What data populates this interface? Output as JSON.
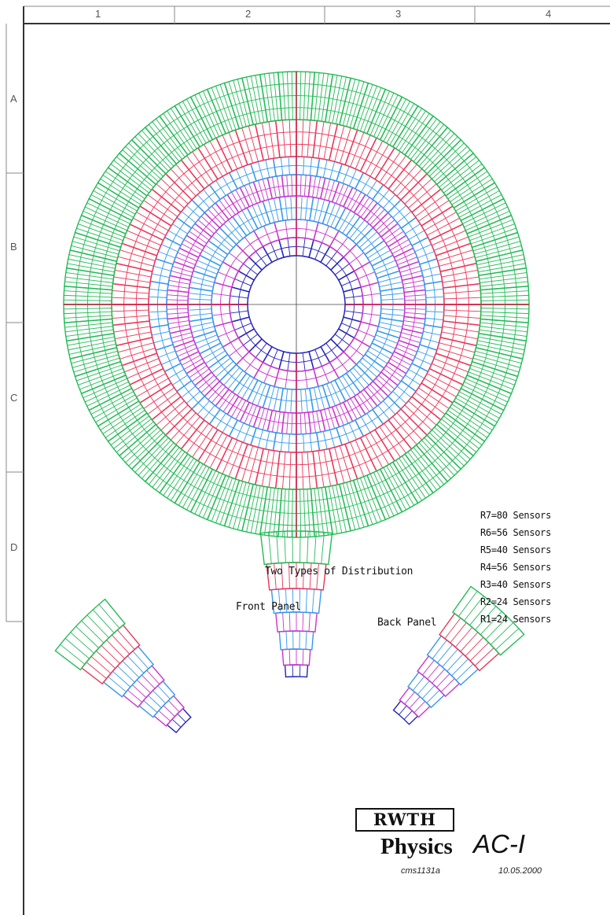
{
  "frame": {
    "columns": [
      "1",
      "2",
      "3",
      "4"
    ],
    "rows": [
      "A",
      "B",
      "C",
      "D"
    ]
  },
  "legend": [
    "R7=80 Sensors",
    "R6=56 Sensors",
    "R5=40 Sensors",
    "R4=56 Sensors",
    "R3=40 Sensors",
    "R2=24 Sensors",
    "R1=24 Sensors"
  ],
  "distribution_title": "Two Types of Distribution",
  "front_panel_label": "Front Panel",
  "back_panel_label": "Back Panel",
  "logo": {
    "text": "RWTH",
    "line1": "Physics",
    "line2": "AC-I"
  },
  "document": {
    "id": "cms1131a",
    "date": "10.05.2000"
  },
  "rings": [
    {
      "name": "R1",
      "sensors": 24,
      "color": "#2222bb"
    },
    {
      "name": "R2",
      "sensors": 24,
      "color": "#cc33cc"
    },
    {
      "name": "R3",
      "sensors": 40,
      "color": "#3399ee"
    },
    {
      "name": "R4",
      "sensors": 56,
      "color": "#cc33cc"
    },
    {
      "name": "R5",
      "sensors": 40,
      "color": "#3399ee"
    },
    {
      "name": "R6",
      "sensors": 56,
      "color": "#ee3355"
    },
    {
      "name": "R7",
      "sensors": 80,
      "color": "#22bb55"
    }
  ]
}
